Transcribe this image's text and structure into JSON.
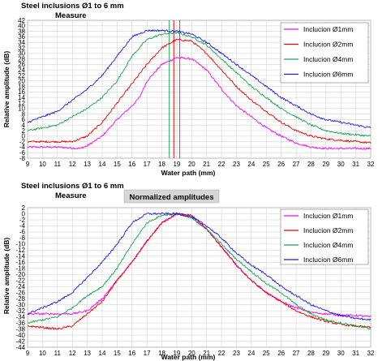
{
  "colors": {
    "o1mm": "#ff00ff",
    "o2mm": "#ee0000",
    "o4mm": "#1aa354",
    "o6mm": "#1a1aee"
  },
  "chart_data": [
    {
      "type": "line",
      "title": "Steel inclusions Ø1 to 6 mm",
      "subtitle": "Measure",
      "xlabel": "Water path (mm)",
      "ylabel": "Relative amplitude (dB)",
      "xlim": [
        9,
        32
      ],
      "ylim": [
        -8,
        42
      ],
      "x_ticks": [
        "9",
        "10",
        "11",
        "12",
        "13",
        "14",
        "15",
        "16",
        "17",
        "18",
        "19",
        "20",
        "21",
        "22",
        "23",
        "24",
        "25",
        "26",
        "27",
        "28",
        "29",
        "30",
        "31",
        "32"
      ],
      "y_ticks": [
        "-8",
        "-6",
        "-4",
        "-2",
        "0",
        "2",
        "4",
        "6",
        "8",
        "10",
        "12",
        "14",
        "16",
        "18",
        "20",
        "22",
        "24",
        "26",
        "28",
        "30",
        "32",
        "34",
        "36",
        "38",
        "40",
        "42"
      ],
      "grid": true,
      "legend": "top-right",
      "vlines": [
        {
          "x": 18.5,
          "series": "Inclucion Ø4mm"
        },
        {
          "x": 18.8,
          "series": "Inclucion Ø2mm"
        },
        {
          "x": 19.2,
          "series": "Inclucion Ø1mm"
        }
      ],
      "series": [
        {
          "name": "Inclucion Ø1mm",
          "color": "#ff00ff",
          "points": [
            [
              9,
              -4
            ],
            [
              10,
              -4
            ],
            [
              11,
              -4
            ],
            [
              12,
              -4.3
            ],
            [
              12.5,
              -4.5
            ],
            [
              13,
              -3.5
            ],
            [
              14,
              0
            ],
            [
              15,
              6
            ],
            [
              16,
              11
            ],
            [
              16.5,
              14
            ],
            [
              17,
              20
            ],
            [
              18,
              26
            ],
            [
              19,
              28.5
            ],
            [
              20,
              28
            ],
            [
              21,
              24
            ],
            [
              22,
              17
            ],
            [
              23,
              11
            ],
            [
              24,
              7
            ],
            [
              25,
              3
            ],
            [
              26,
              0
            ],
            [
              27,
              -2.5
            ],
            [
              28,
              -4
            ],
            [
              29,
              -4.5
            ],
            [
              30,
              -4.5
            ],
            [
              31,
              -4.5
            ],
            [
              32,
              -4.5
            ]
          ]
        },
        {
          "name": "Inclucion Ø2mm",
          "color": "#ee0000",
          "points": [
            [
              9,
              -2
            ],
            [
              10,
              -2
            ],
            [
              11,
              -2
            ],
            [
              12,
              -2
            ],
            [
              13,
              0
            ],
            [
              14,
              5
            ],
            [
              15,
              12
            ],
            [
              16,
              19
            ],
            [
              17,
              26
            ],
            [
              18,
              32
            ],
            [
              19,
              35
            ],
            [
              20,
              34.5
            ],
            [
              21,
              30
            ],
            [
              22,
              24
            ],
            [
              23,
              18
            ],
            [
              24,
              13
            ],
            [
              25,
              9
            ],
            [
              26,
              5
            ],
            [
              27,
              2
            ],
            [
              28,
              0
            ],
            [
              29,
              -1
            ],
            [
              30,
              -1.5
            ],
            [
              31,
              -2
            ],
            [
              32,
              -2.5
            ]
          ]
        },
        {
          "name": "Inclucion Ø4mm",
          "color": "#1aa354",
          "points": [
            [
              9,
              2
            ],
            [
              10,
              3
            ],
            [
              11,
              4
            ],
            [
              12,
              7
            ],
            [
              13,
              10
            ],
            [
              14,
              14
            ],
            [
              15,
              20
            ],
            [
              16,
              29
            ],
            [
              17,
              35
            ],
            [
              18,
              37
            ],
            [
              19,
              37.5
            ],
            [
              20,
              36
            ],
            [
              21,
              33
            ],
            [
              22,
              28
            ],
            [
              23,
              23
            ],
            [
              24,
              18
            ],
            [
              25,
              14
            ],
            [
              26,
              10
            ],
            [
              27,
              7
            ],
            [
              28,
              4
            ],
            [
              29,
              2
            ],
            [
              30,
              1
            ],
            [
              31,
              0.5
            ],
            [
              32,
              0
            ]
          ]
        },
        {
          "name": "Inclucion Ø6mm",
          "color": "#1a1aee",
          "points": [
            [
              9,
              5
            ],
            [
              10,
              7
            ],
            [
              11,
              9
            ],
            [
              12,
              13
            ],
            [
              13,
              17
            ],
            [
              14,
              22
            ],
            [
              15,
              29
            ],
            [
              16,
              36
            ],
            [
              17,
              38.3
            ],
            [
              18,
              38.3
            ],
            [
              19,
              38
            ],
            [
              20,
              37
            ],
            [
              21,
              34
            ],
            [
              22,
              30
            ],
            [
              23,
              26
            ],
            [
              24,
              22
            ],
            [
              25,
              18
            ],
            [
              26,
              14
            ],
            [
              27,
              11
            ],
            [
              28,
              8
            ],
            [
              29,
              6
            ],
            [
              30,
              5
            ],
            [
              31,
              4
            ],
            [
              32,
              3
            ]
          ]
        }
      ]
    },
    {
      "type": "line",
      "title": "Steel inclusions Ø1 to 6 mm",
      "subtitle": "Measure",
      "annotation": "Normalized amplitudes",
      "xlabel": "Water path (mm)",
      "ylabel": "Relative amplitude (dB)",
      "xlim": [
        9,
        32
      ],
      "ylim": [
        -44,
        2
      ],
      "x_ticks": [
        "9",
        "10",
        "11",
        "12",
        "13",
        "14",
        "15",
        "16",
        "17",
        "18",
        "19",
        "20",
        "21",
        "22",
        "23",
        "24",
        "25",
        "26",
        "27",
        "28",
        "29",
        "30",
        "31",
        "32"
      ],
      "y_ticks": [
        "-44",
        "-42",
        "-40",
        "-38",
        "-36",
        "-34",
        "-32",
        "-30",
        "-28",
        "-26",
        "-24",
        "-22",
        "-20",
        "-18",
        "-16",
        "-14",
        "-12",
        "-10",
        "-8",
        "-6",
        "-4",
        "-2",
        "0",
        "2"
      ],
      "grid": true,
      "legend": "top-right",
      "series": [
        {
          "name": "Inclucion Ø1mm",
          "color": "#ff00ff",
          "points": [
            [
              9,
              -33
            ],
            [
              10,
              -33
            ],
            [
              11,
              -33
            ],
            [
              12,
              -33
            ],
            [
              13,
              -32
            ],
            [
              14,
              -28
            ],
            [
              15,
              -22
            ],
            [
              16,
              -16
            ],
            [
              17,
              -9
            ],
            [
              18,
              -3
            ],
            [
              19,
              0
            ],
            [
              20,
              -1
            ],
            [
              21,
              -5
            ],
            [
              22,
              -11
            ],
            [
              23,
              -17
            ],
            [
              24,
              -22
            ],
            [
              25,
              -26
            ],
            [
              26,
              -29
            ],
            [
              27,
              -31
            ],
            [
              28,
              -32.5
            ],
            [
              29,
              -33
            ],
            [
              30,
              -33.5
            ],
            [
              31,
              -33.5
            ],
            [
              32,
              -34
            ]
          ]
        },
        {
          "name": "Inclucion Ø2mm",
          "color": "#ee0000",
          "points": [
            [
              9,
              -37
            ],
            [
              10,
              -37.5
            ],
            [
              11,
              -38
            ],
            [
              12,
              -37
            ],
            [
              13,
              -33
            ],
            [
              14,
              -29
            ],
            [
              15,
              -22
            ],
            [
              16,
              -16
            ],
            [
              17,
              -9
            ],
            [
              18,
              -3
            ],
            [
              19,
              0
            ],
            [
              20,
              -0.5
            ],
            [
              21,
              -5
            ],
            [
              22,
              -11
            ],
            [
              23,
              -17
            ],
            [
              24,
              -22
            ],
            [
              25,
              -26
            ],
            [
              26,
              -29
            ],
            [
              27,
              -32
            ],
            [
              28,
              -34
            ],
            [
              29,
              -35.5
            ],
            [
              30,
              -36.5
            ],
            [
              31,
              -37
            ],
            [
              32,
              -37.5
            ]
          ]
        },
        {
          "name": "Inclucion Ø4mm",
          "color": "#1aa354",
          "points": [
            [
              9,
              -36
            ],
            [
              10,
              -35
            ],
            [
              11,
              -34
            ],
            [
              12,
              -31
            ],
            [
              13,
              -27
            ],
            [
              14,
              -24
            ],
            [
              15,
              -18
            ],
            [
              16,
              -10
            ],
            [
              17,
              -3
            ],
            [
              18,
              -0.5
            ],
            [
              19,
              0
            ],
            [
              20,
              -1.5
            ],
            [
              21,
              -5
            ],
            [
              22,
              -10
            ],
            [
              23,
              -15
            ],
            [
              24,
              -19
            ],
            [
              25,
              -23
            ],
            [
              26,
              -26
            ],
            [
              27,
              -30
            ],
            [
              28,
              -33
            ],
            [
              29,
              -35
            ],
            [
              30,
              -36
            ],
            [
              31,
              -37
            ],
            [
              32,
              -38
            ]
          ]
        },
        {
          "name": "Inclucion Ø6mm",
          "color": "#1a1aee",
          "points": [
            [
              9,
              -33
            ],
            [
              10,
              -31
            ],
            [
              11,
              -29
            ],
            [
              12,
              -26
            ],
            [
              13,
              -21
            ],
            [
              14,
              -16
            ],
            [
              15,
              -10
            ],
            [
              16,
              -3
            ],
            [
              17,
              0
            ],
            [
              18,
              0
            ],
            [
              19,
              0
            ],
            [
              20,
              -1
            ],
            [
              21,
              -4
            ],
            [
              22,
              -8
            ],
            [
              23,
              -13
            ],
            [
              24,
              -17
            ],
            [
              25,
              -20
            ],
            [
              26,
              -24
            ],
            [
              27,
              -27
            ],
            [
              28,
              -30
            ],
            [
              29,
              -32
            ],
            [
              30,
              -33.5
            ],
            [
              31,
              -34.5
            ],
            [
              32,
              -35
            ]
          ]
        }
      ]
    }
  ]
}
